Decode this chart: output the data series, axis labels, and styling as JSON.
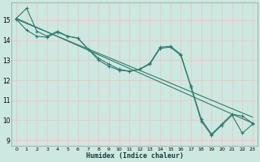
{
  "xlabel": "Humidex (Indice chaleur)",
  "bg_color": "#cce8e0",
  "grid_color": "#b0d8d0",
  "line_color": "#2e7b6e",
  "xlim": [
    -0.5,
    23.5
  ],
  "ylim": [
    8.7,
    15.9
  ],
  "yticks": [
    9,
    10,
    11,
    12,
    13,
    14,
    15
  ],
  "xticks": [
    0,
    1,
    2,
    3,
    4,
    5,
    6,
    7,
    8,
    9,
    10,
    11,
    12,
    13,
    14,
    15,
    16,
    17,
    18,
    19,
    20,
    21,
    22,
    23
  ],
  "line1_x": [
    0,
    1,
    2,
    3,
    4,
    5,
    6,
    7,
    8,
    9,
    10,
    11,
    12,
    13,
    14,
    15,
    16,
    17,
    18,
    19,
    20,
    21,
    22,
    23
  ],
  "line1_y": [
    15.1,
    15.6,
    14.45,
    14.2,
    14.45,
    14.2,
    14.1,
    13.55,
    13.1,
    12.8,
    12.55,
    12.45,
    12.55,
    12.85,
    13.65,
    13.7,
    13.3,
    11.7,
    10.05,
    9.3,
    9.8,
    10.3,
    10.2,
    9.85
  ],
  "line2_x": [
    0,
    1,
    2,
    3,
    4,
    5,
    6,
    7,
    8,
    9,
    10,
    11,
    12,
    13,
    14,
    15,
    16,
    17,
    18,
    19,
    20,
    21,
    22,
    23
  ],
  "line2_y": [
    15.05,
    14.5,
    14.2,
    14.15,
    14.4,
    14.2,
    14.1,
    13.55,
    13.0,
    12.7,
    12.5,
    12.45,
    12.55,
    12.8,
    13.6,
    13.65,
    13.25,
    11.65,
    9.95,
    9.25,
    9.75,
    10.25,
    9.35,
    9.8
  ],
  "trend1_x": [
    0,
    23
  ],
  "trend1_y": [
    15.1,
    9.85
  ],
  "trend2_x": [
    0,
    23
  ],
  "trend2_y": [
    15.05,
    10.15
  ]
}
